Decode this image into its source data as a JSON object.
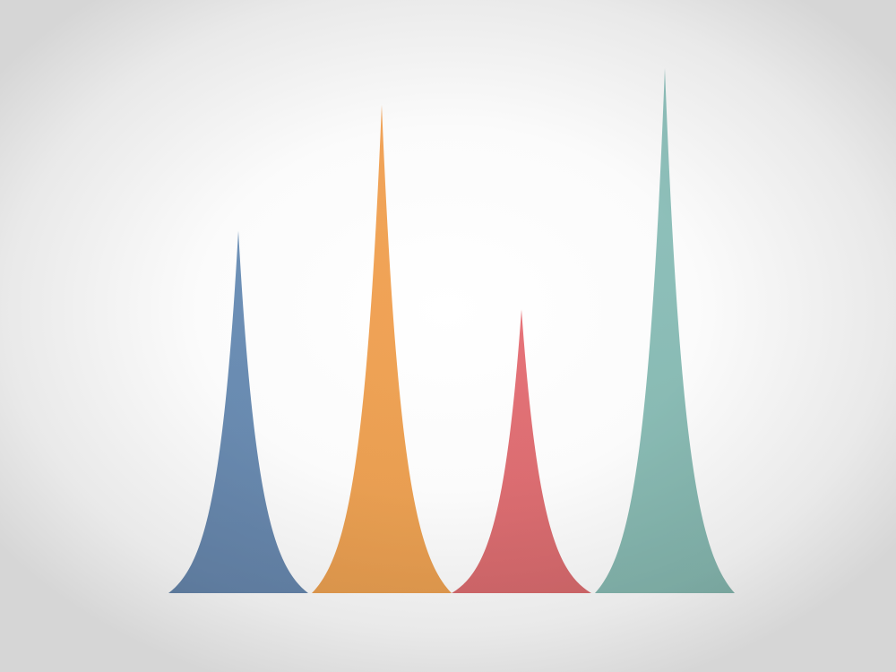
{
  "chart_data": {
    "type": "area",
    "title": "",
    "xlabel": "",
    "ylabel": "",
    "grid": false,
    "legend": "none",
    "ylim": [
      0,
      100
    ],
    "xlim": [
      0,
      100
    ],
    "series": [
      {
        "center": 19.5,
        "width": 19.5,
        "peak": 69,
        "color": "#6f93ba",
        "color_dark": "#6787ad"
      },
      {
        "center": 39.5,
        "width": 19.5,
        "peak": 93,
        "color": "#f5a65a",
        "color_dark": "#eba051"
      },
      {
        "center": 59.0,
        "width": 19.5,
        "peak": 54,
        "color": "#e8747a",
        "color_dark": "#d96b6e"
      },
      {
        "center": 79.0,
        "width": 19.5,
        "peak": 100,
        "color": "#93c6c1",
        "color_dark": "#87b9b1"
      }
    ]
  }
}
